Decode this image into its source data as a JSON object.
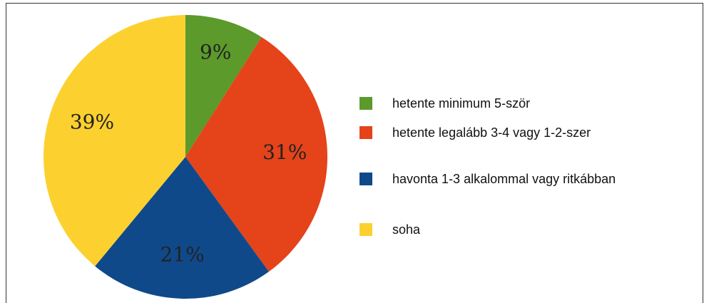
{
  "chart_data": {
    "type": "pie",
    "categories": [
      "hetente minimum 5-ször",
      "hetente legalább 3-4 vagy 1-2-szer",
      "havonta 1-3 alkalommal vagy ritkábban",
      "soha"
    ],
    "values": [
      9,
      31,
      21,
      39
    ],
    "value_labels": [
      "9%",
      "31%",
      "21%",
      "39%"
    ],
    "colors": [
      "#5b9a2b",
      "#e5431a",
      "#10498a",
      "#fcd12f"
    ],
    "legend": "right"
  }
}
